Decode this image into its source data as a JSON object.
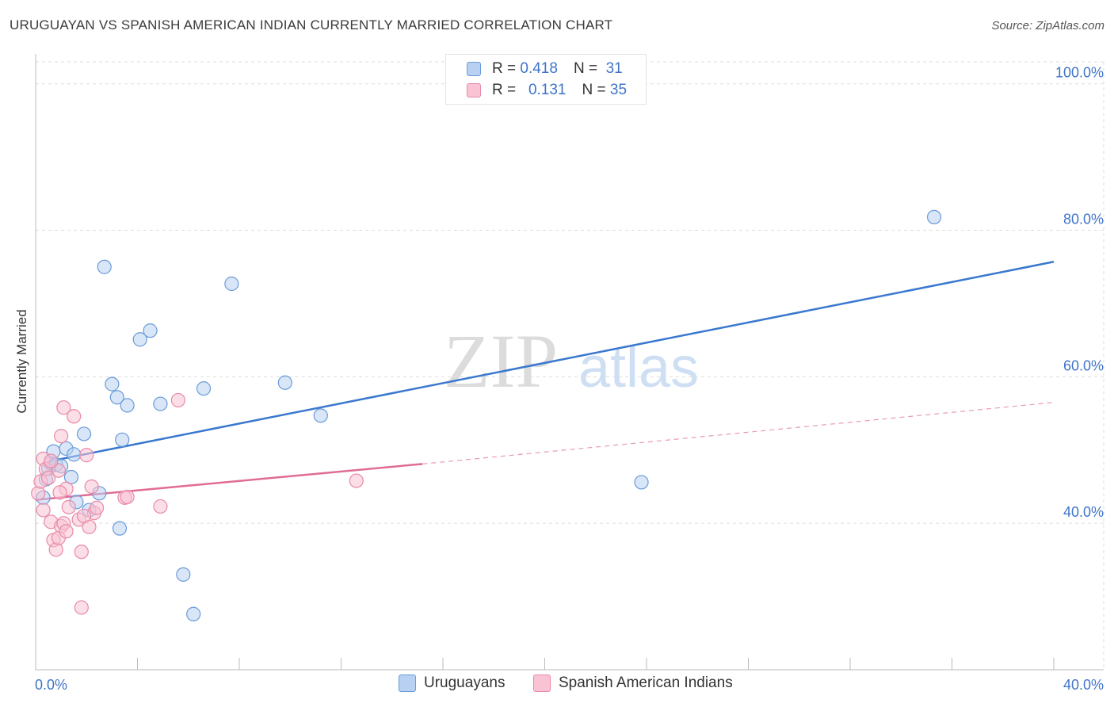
{
  "title": "URUGUAYAN VS SPANISH AMERICAN INDIAN CURRENTLY MARRIED CORRELATION CHART",
  "source": "Source: ZipAtlas.com",
  "watermark": {
    "zip": "ZIP",
    "atlas": "atlas"
  },
  "legend": {
    "r_label": "R =",
    "n_label": "N =",
    "rows": [
      {
        "r": "0.418",
        "n": "31",
        "fill": "#b8d1f3",
        "stroke": "#6a9bd8"
      },
      {
        "r": "0.131",
        "n": "35",
        "fill": "#f9c3d4",
        "stroke": "#e88aa8"
      }
    ]
  },
  "chart_data": {
    "type": "scatter",
    "title": "URUGUAYAN VS SPANISH AMERICAN INDIAN CURRENTLY MARRIED CORRELATION CHART",
    "xlabel": "",
    "ylabel": "Currently Married",
    "xlim": [
      0,
      40
    ],
    "ylim": [
      20,
      103
    ],
    "x_tick_labels": [
      "0.0%",
      "40.0%"
    ],
    "y_ticks": [
      40,
      60,
      80,
      100
    ],
    "y_tick_labels": [
      "40.0%",
      "60.0%",
      "80.0%",
      "100.0%"
    ],
    "grid": true,
    "legend_position": "top-center",
    "series": [
      {
        "name": "Uruguayans",
        "color": "#6a9bd8",
        "fill": "#b8d1f3",
        "line_color": "#3a78cf",
        "trend": {
          "x": [
            0.6,
            40.0
          ],
          "y": [
            48.5,
            75.7
          ],
          "style": "solid"
        },
        "points": [
          [
            0.3,
            43.5
          ],
          [
            0.4,
            46.0
          ],
          [
            0.5,
            47.5
          ],
          [
            0.6,
            48.2
          ],
          [
            0.7,
            49.8
          ],
          [
            0.8,
            48.0
          ],
          [
            1.0,
            47.8
          ],
          [
            1.2,
            50.2
          ],
          [
            1.4,
            46.3
          ],
          [
            1.6,
            42.9
          ],
          [
            1.9,
            52.2
          ],
          [
            2.1,
            41.8
          ],
          [
            2.5,
            44.1
          ],
          [
            3.0,
            59.0
          ],
          [
            3.2,
            57.2
          ],
          [
            3.4,
            51.4
          ],
          [
            3.6,
            56.1
          ],
          [
            3.3,
            39.3
          ],
          [
            2.7,
            75.0
          ],
          [
            4.1,
            65.1
          ],
          [
            4.5,
            66.3
          ],
          [
            4.9,
            56.3
          ],
          [
            5.8,
            33.0
          ],
          [
            6.2,
            27.6
          ],
          [
            6.6,
            58.4
          ],
          [
            7.7,
            72.7
          ],
          [
            9.8,
            59.2
          ],
          [
            11.2,
            54.7
          ],
          [
            23.8,
            45.6
          ],
          [
            35.3,
            81.8
          ],
          [
            1.5,
            49.4
          ]
        ]
      },
      {
        "name": "Spanish American Indians",
        "color": "#e88aa8",
        "fill": "#f9c3d4",
        "line_color": "#e06c95",
        "trend": {
          "x": [
            0.0,
            15.2
          ],
          "y": [
            43.2,
            48.1
          ],
          "style": "solid"
        },
        "trend_extension": {
          "x": [
            15.2,
            40.0
          ],
          "y": [
            48.1,
            56.5
          ],
          "style": "dashed"
        },
        "points": [
          [
            0.1,
            44.1
          ],
          [
            0.2,
            45.7
          ],
          [
            0.3,
            48.8
          ],
          [
            0.4,
            47.4
          ],
          [
            0.5,
            46.2
          ],
          [
            0.6,
            40.2
          ],
          [
            0.7,
            37.7
          ],
          [
            0.8,
            36.4
          ],
          [
            0.9,
            38.0
          ],
          [
            1.0,
            39.6
          ],
          [
            1.1,
            40.0
          ],
          [
            1.2,
            44.7
          ],
          [
            1.3,
            42.2
          ],
          [
            1.1,
            55.8
          ],
          [
            1.5,
            54.6
          ],
          [
            1.0,
            51.9
          ],
          [
            1.7,
            40.5
          ],
          [
            1.8,
            36.1
          ],
          [
            1.8,
            28.5
          ],
          [
            2.0,
            49.3
          ],
          [
            2.1,
            39.5
          ],
          [
            2.2,
            45.0
          ],
          [
            2.3,
            41.4
          ],
          [
            2.4,
            42.1
          ],
          [
            1.2,
            38.9
          ],
          [
            0.9,
            47.2
          ],
          [
            1.9,
            41.0
          ],
          [
            3.5,
            43.5
          ],
          [
            3.6,
            43.6
          ],
          [
            4.9,
            42.3
          ],
          [
            5.6,
            56.8
          ],
          [
            12.6,
            45.8
          ],
          [
            0.3,
            41.8
          ],
          [
            0.6,
            48.5
          ],
          [
            0.95,
            44.2
          ]
        ]
      }
    ]
  },
  "bottom_legend": [
    {
      "label": "Uruguayans",
      "fill": "#b8d1f3",
      "stroke": "#6a9bd8"
    },
    {
      "label": "Spanish American Indians",
      "fill": "#f9c3d4",
      "stroke": "#e88aa8"
    }
  ]
}
